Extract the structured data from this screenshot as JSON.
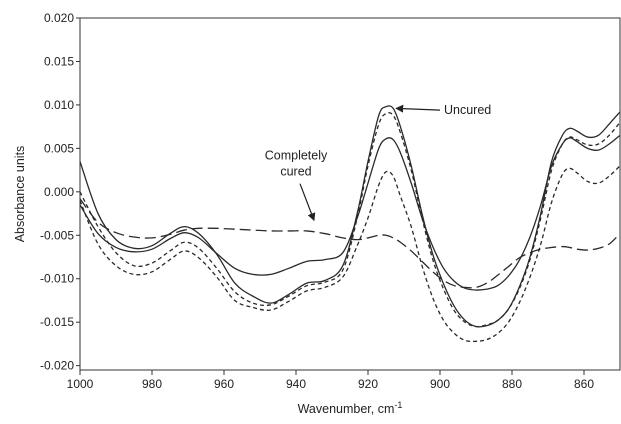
{
  "chart_data": {
    "type": "line",
    "xlabel": "Wavenumber, cm",
    "xlabel_superscript": "-1",
    "ylabel": "Absorbance units",
    "xlim": [
      1000,
      850
    ],
    "x_reversed": true,
    "ylim": [
      -0.0205,
      0.02
    ],
    "x_ticks": [
      1000,
      980,
      960,
      940,
      920,
      900,
      880,
      860
    ],
    "x_tick_labels": [
      "1000",
      "980",
      "960",
      "940",
      "920",
      "900",
      "880",
      "860"
    ],
    "y_ticks": [
      0.02,
      0.015,
      0.01,
      0.005,
      0.0,
      -0.005,
      -0.01,
      -0.015,
      -0.02
    ],
    "y_tick_labels": [
      "0.020",
      "0.015",
      "0.010",
      "0.005",
      "0.000",
      "-0.005",
      "-0.010",
      "-0.015",
      "-0.020"
    ],
    "grid": false,
    "line_color": "#2a2a2a",
    "series": [
      {
        "style": "solid",
        "x": [
          1000,
          995,
          990,
          985,
          980,
          975,
          971,
          967,
          962,
          957,
          952,
          947,
          942,
          937,
          932,
          927,
          923,
          920,
          917,
          915,
          913,
          911,
          908,
          905,
          902,
          899,
          896,
          893,
          890,
          887,
          884,
          881,
          878,
          875,
          872,
          869,
          866,
          864,
          862,
          859,
          856,
          853,
          850
        ],
        "y": [
          0.0035,
          -0.0025,
          -0.0055,
          -0.0065,
          -0.0062,
          -0.0048,
          -0.004,
          -0.0048,
          -0.0072,
          -0.0105,
          -0.012,
          -0.0128,
          -0.0118,
          -0.0105,
          -0.0102,
          -0.0085,
          -0.0025,
          0.0035,
          0.0088,
          0.0098,
          0.0096,
          0.0075,
          0.003,
          -0.0025,
          -0.0072,
          -0.0106,
          -0.0132,
          -0.0148,
          -0.0155,
          -0.0154,
          -0.0148,
          -0.0135,
          -0.011,
          -0.0075,
          -0.0025,
          0.0035,
          0.0065,
          0.0073,
          0.007,
          0.0063,
          0.0065,
          0.0078,
          0.0092
        ]
      },
      {
        "style": "solid",
        "x": [
          1000,
          995,
          990,
          985,
          980,
          975,
          971,
          967,
          962,
          957,
          952,
          947,
          942,
          937,
          932,
          927,
          923,
          920,
          917,
          915,
          913,
          911,
          908,
          905,
          902,
          899,
          896,
          893,
          890,
          887,
          884,
          881,
          878,
          875,
          872,
          869,
          866,
          864,
          862,
          859,
          856,
          853,
          850
        ],
        "y": [
          -0.0015,
          -0.0048,
          -0.0064,
          -0.0069,
          -0.0066,
          -0.0054,
          -0.0047,
          -0.0053,
          -0.0071,
          -0.0088,
          -0.0095,
          -0.0095,
          -0.0088,
          -0.008,
          -0.0078,
          -0.007,
          -0.003,
          0.001,
          0.005,
          0.0061,
          0.006,
          0.0045,
          0.001,
          -0.003,
          -0.0063,
          -0.0088,
          -0.0103,
          -0.0111,
          -0.0113,
          -0.0112,
          -0.0108,
          -0.0097,
          -0.0079,
          -0.0052,
          -0.0015,
          0.003,
          0.0055,
          0.0062,
          0.0058,
          0.005,
          0.0048,
          0.0055,
          0.0065
        ]
      },
      {
        "style": "dashed",
        "x": [
          1000,
          995,
          990,
          985,
          980,
          975,
          971,
          967,
          962,
          957,
          952,
          947,
          942,
          937,
          932,
          927,
          923,
          920,
          917,
          915,
          913,
          911,
          908,
          905,
          902,
          899,
          896,
          893,
          890,
          887,
          884,
          881,
          878,
          875,
          872,
          869,
          866,
          864,
          862,
          859,
          856,
          853,
          850
        ],
        "y": [
          0.0,
          -0.004,
          -0.007,
          -0.0085,
          -0.0082,
          -0.0068,
          -0.0058,
          -0.0065,
          -0.0088,
          -0.0115,
          -0.0128,
          -0.013,
          -0.012,
          -0.0108,
          -0.0104,
          -0.009,
          -0.003,
          0.003,
          0.0078,
          0.009,
          0.0088,
          0.0068,
          0.0025,
          -0.003,
          -0.0078,
          -0.0112,
          -0.0137,
          -0.015,
          -0.0155,
          -0.0153,
          -0.0148,
          -0.0135,
          -0.0112,
          -0.0078,
          -0.003,
          0.0025,
          0.0055,
          0.0063,
          0.006,
          0.0054,
          0.0055,
          0.0065,
          0.008
        ]
      },
      {
        "style": "dashed",
        "x": [
          1000,
          995,
          990,
          985,
          980,
          975,
          971,
          967,
          962,
          957,
          952,
          947,
          942,
          937,
          932,
          927,
          923,
          920,
          917,
          915,
          913,
          911,
          908,
          905,
          902,
          899,
          896,
          893,
          890,
          887,
          884,
          881,
          878,
          875,
          872,
          869,
          866,
          864,
          862,
          859,
          856,
          853,
          850
        ],
        "y": [
          -0.001,
          -0.006,
          -0.0085,
          -0.0095,
          -0.0092,
          -0.0078,
          -0.0068,
          -0.0076,
          -0.0098,
          -0.0125,
          -0.0133,
          -0.0136,
          -0.0126,
          -0.0114,
          -0.011,
          -0.0098,
          -0.0062,
          -0.003,
          0.0008,
          0.0023,
          0.0018,
          -0.0005,
          -0.004,
          -0.0085,
          -0.0122,
          -0.0148,
          -0.0163,
          -0.0171,
          -0.0172,
          -0.017,
          -0.0163,
          -0.015,
          -0.0128,
          -0.0098,
          -0.006,
          -0.0012,
          0.002,
          0.0027,
          0.0022,
          0.0012,
          0.001,
          0.0018,
          0.003
        ]
      },
      {
        "style": "longdash",
        "x": [
          1000,
          995,
          990,
          985,
          980,
          975,
          971,
          967,
          962,
          957,
          952,
          947,
          942,
          937,
          932,
          927,
          923,
          920,
          917,
          915,
          913,
          911,
          908,
          905,
          902,
          899,
          896,
          893,
          890,
          887,
          884,
          881,
          878,
          875,
          872,
          869,
          866,
          864,
          862,
          859,
          856,
          853,
          850
        ],
        "y": [
          -0.0008,
          -0.0035,
          -0.0047,
          -0.0052,
          -0.0053,
          -0.0049,
          -0.0044,
          -0.0042,
          -0.0042,
          -0.0043,
          -0.0044,
          -0.0045,
          -0.0045,
          -0.0045,
          -0.0048,
          -0.0053,
          -0.0055,
          -0.0053,
          -0.005,
          -0.005,
          -0.0053,
          -0.0058,
          -0.0068,
          -0.008,
          -0.0092,
          -0.0102,
          -0.0108,
          -0.011,
          -0.011,
          -0.0105,
          -0.0096,
          -0.0086,
          -0.0076,
          -0.007,
          -0.0066,
          -0.0064,
          -0.0063,
          -0.0064,
          -0.0066,
          -0.0067,
          -0.0065,
          -0.006,
          -0.0048
        ]
      }
    ],
    "annotations": [
      {
        "text": "Uncured",
        "lines": [
          "Uncured"
        ],
        "x": 900,
        "y": 0.0094,
        "arrow_to": [
          913,
          0.0096
        ]
      },
      {
        "text": "Completely cured",
        "lines": [
          "Completely",
          "cured"
        ],
        "x": 940,
        "y": 0.0037,
        "arrow_to": [
          935,
          -0.0035
        ]
      }
    ]
  }
}
